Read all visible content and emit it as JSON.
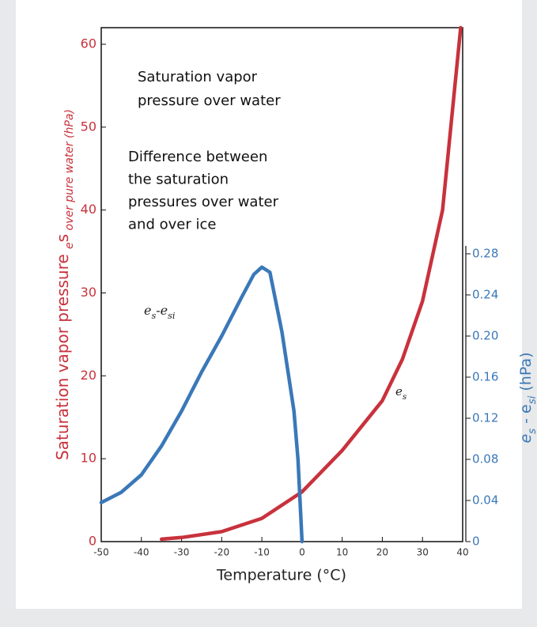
{
  "chart_data": {
    "type": "line",
    "x_label": "Temperature (°C)",
    "y_label": [
      "Saturation vapor pressure ",
      "e",
      "s",
      " over pure water (hPa)"
    ],
    "y2_label": [
      "e",
      "s",
      " - e",
      "si",
      " (hPa)"
    ],
    "xlim": [
      -50,
      40
    ],
    "xticks": [
      -50,
      -40,
      -30,
      -20,
      -10,
      0,
      10,
      20,
      30,
      40
    ],
    "ylim": [
      0,
      62
    ],
    "yticks": [
      0,
      10,
      20,
      30,
      40,
      50,
      60
    ],
    "y2lim": [
      0,
      0.5
    ],
    "y2ticks": [
      0,
      0.04,
      0.08,
      0.12,
      0.16,
      {
        "value": 0.2,
        "label": "0.20"
      },
      0.24,
      0.28
    ],
    "y_color": "#c8323c",
    "y2_color": "#3a78b8",
    "series": [
      {
        "name": [
          "e",
          "s"
        ],
        "color": "#c8323c",
        "x": [
          -35,
          -30,
          -20,
          -10,
          0,
          10,
          20,
          25,
          30,
          35,
          39.5
        ],
        "values": [
          0.3,
          0.5,
          1.2,
          2.8,
          6,
          11,
          17,
          22,
          29,
          40,
          62
        ]
      },
      {
        "name": [
          "e",
          "s",
          "-e",
          "si"
        ],
        "color": "#3a78b8",
        "axis": "y2",
        "x": [
          -50,
          -45,
          -40,
          -35,
          -30,
          -25,
          -20,
          -15,
          -12,
          -10,
          -8,
          -5,
          -2,
          -1,
          0
        ],
        "values": [
          0.038,
          0.048,
          0.065,
          0.093,
          0.127,
          0.165,
          0.2,
          0.238,
          0.26,
          0.267,
          0.262,
          0.204,
          0.127,
          0.08,
          0
        ]
      }
    ],
    "annotations": [
      [
        "Saturation vapor",
        "pressure over water"
      ],
      [
        "Difference between",
        "the saturation",
        "pressures over water",
        "and over ice"
      ]
    ]
  }
}
